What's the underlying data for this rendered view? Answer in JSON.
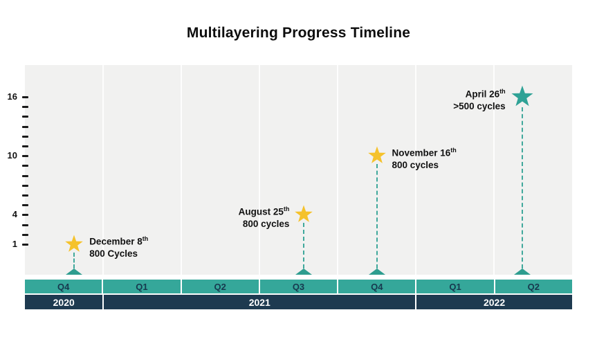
{
  "chart_data": {
    "type": "scatter",
    "title": "Multilayering Progress Timeline",
    "x_axis": {
      "quarters": [
        "Q4",
        "Q1",
        "Q2",
        "Q3",
        "Q4",
        "Q1",
        "Q2"
      ],
      "years": [
        {
          "label": "2020",
          "quarter_span": 1
        },
        {
          "label": "2021",
          "quarter_span": 4
        },
        {
          "label": "2022",
          "quarter_span": 2
        }
      ]
    },
    "y_axis": {
      "tick_min": 1,
      "tick_max": 16,
      "labeled_ticks": [
        1,
        4,
        10,
        16
      ]
    },
    "milestones": [
      {
        "date": "December 8",
        "date_suffix": "th",
        "cycles_label": "800 Cycles",
        "layers": 1,
        "quarter": "Q4 2020",
        "quarter_index": 0,
        "quarter_fraction": 0.63,
        "star": "yellow",
        "label_side": "right"
      },
      {
        "date": "August 25",
        "date_suffix": "th",
        "cycles_label": "800 cycles",
        "layers": 4,
        "quarter": "Q3 2021",
        "quarter_index": 3,
        "quarter_fraction": 0.57,
        "star": "yellow",
        "label_side": "left"
      },
      {
        "date": "November 16",
        "date_suffix": "th",
        "cycles_label": "800 cycles",
        "layers": 10,
        "quarter": "Q4 2021",
        "quarter_index": 4,
        "quarter_fraction": 0.5,
        "star": "yellow",
        "label_side": "right"
      },
      {
        "date": "April 26",
        "date_suffix": "th",
        "cycles_label": ">500 cycles",
        "layers": 16,
        "quarter": "Q2 2022",
        "quarter_index": 6,
        "quarter_fraction": 0.36,
        "star": "teal",
        "label_side": "left"
      }
    ],
    "legend": "none",
    "grid": "vertical-quarter-boundaries"
  },
  "colors": {
    "teal_band": "#35a79a",
    "navy_band": "#1e3a50",
    "plot_background": "#f1f1f0",
    "star_yellow": "#f5c22b",
    "star_teal": "#2fa296",
    "dashed_line": "#3fa89b",
    "triangle": "#2e9d8f",
    "quarter_text": "#17384e",
    "year_text": "#ffffff"
  }
}
